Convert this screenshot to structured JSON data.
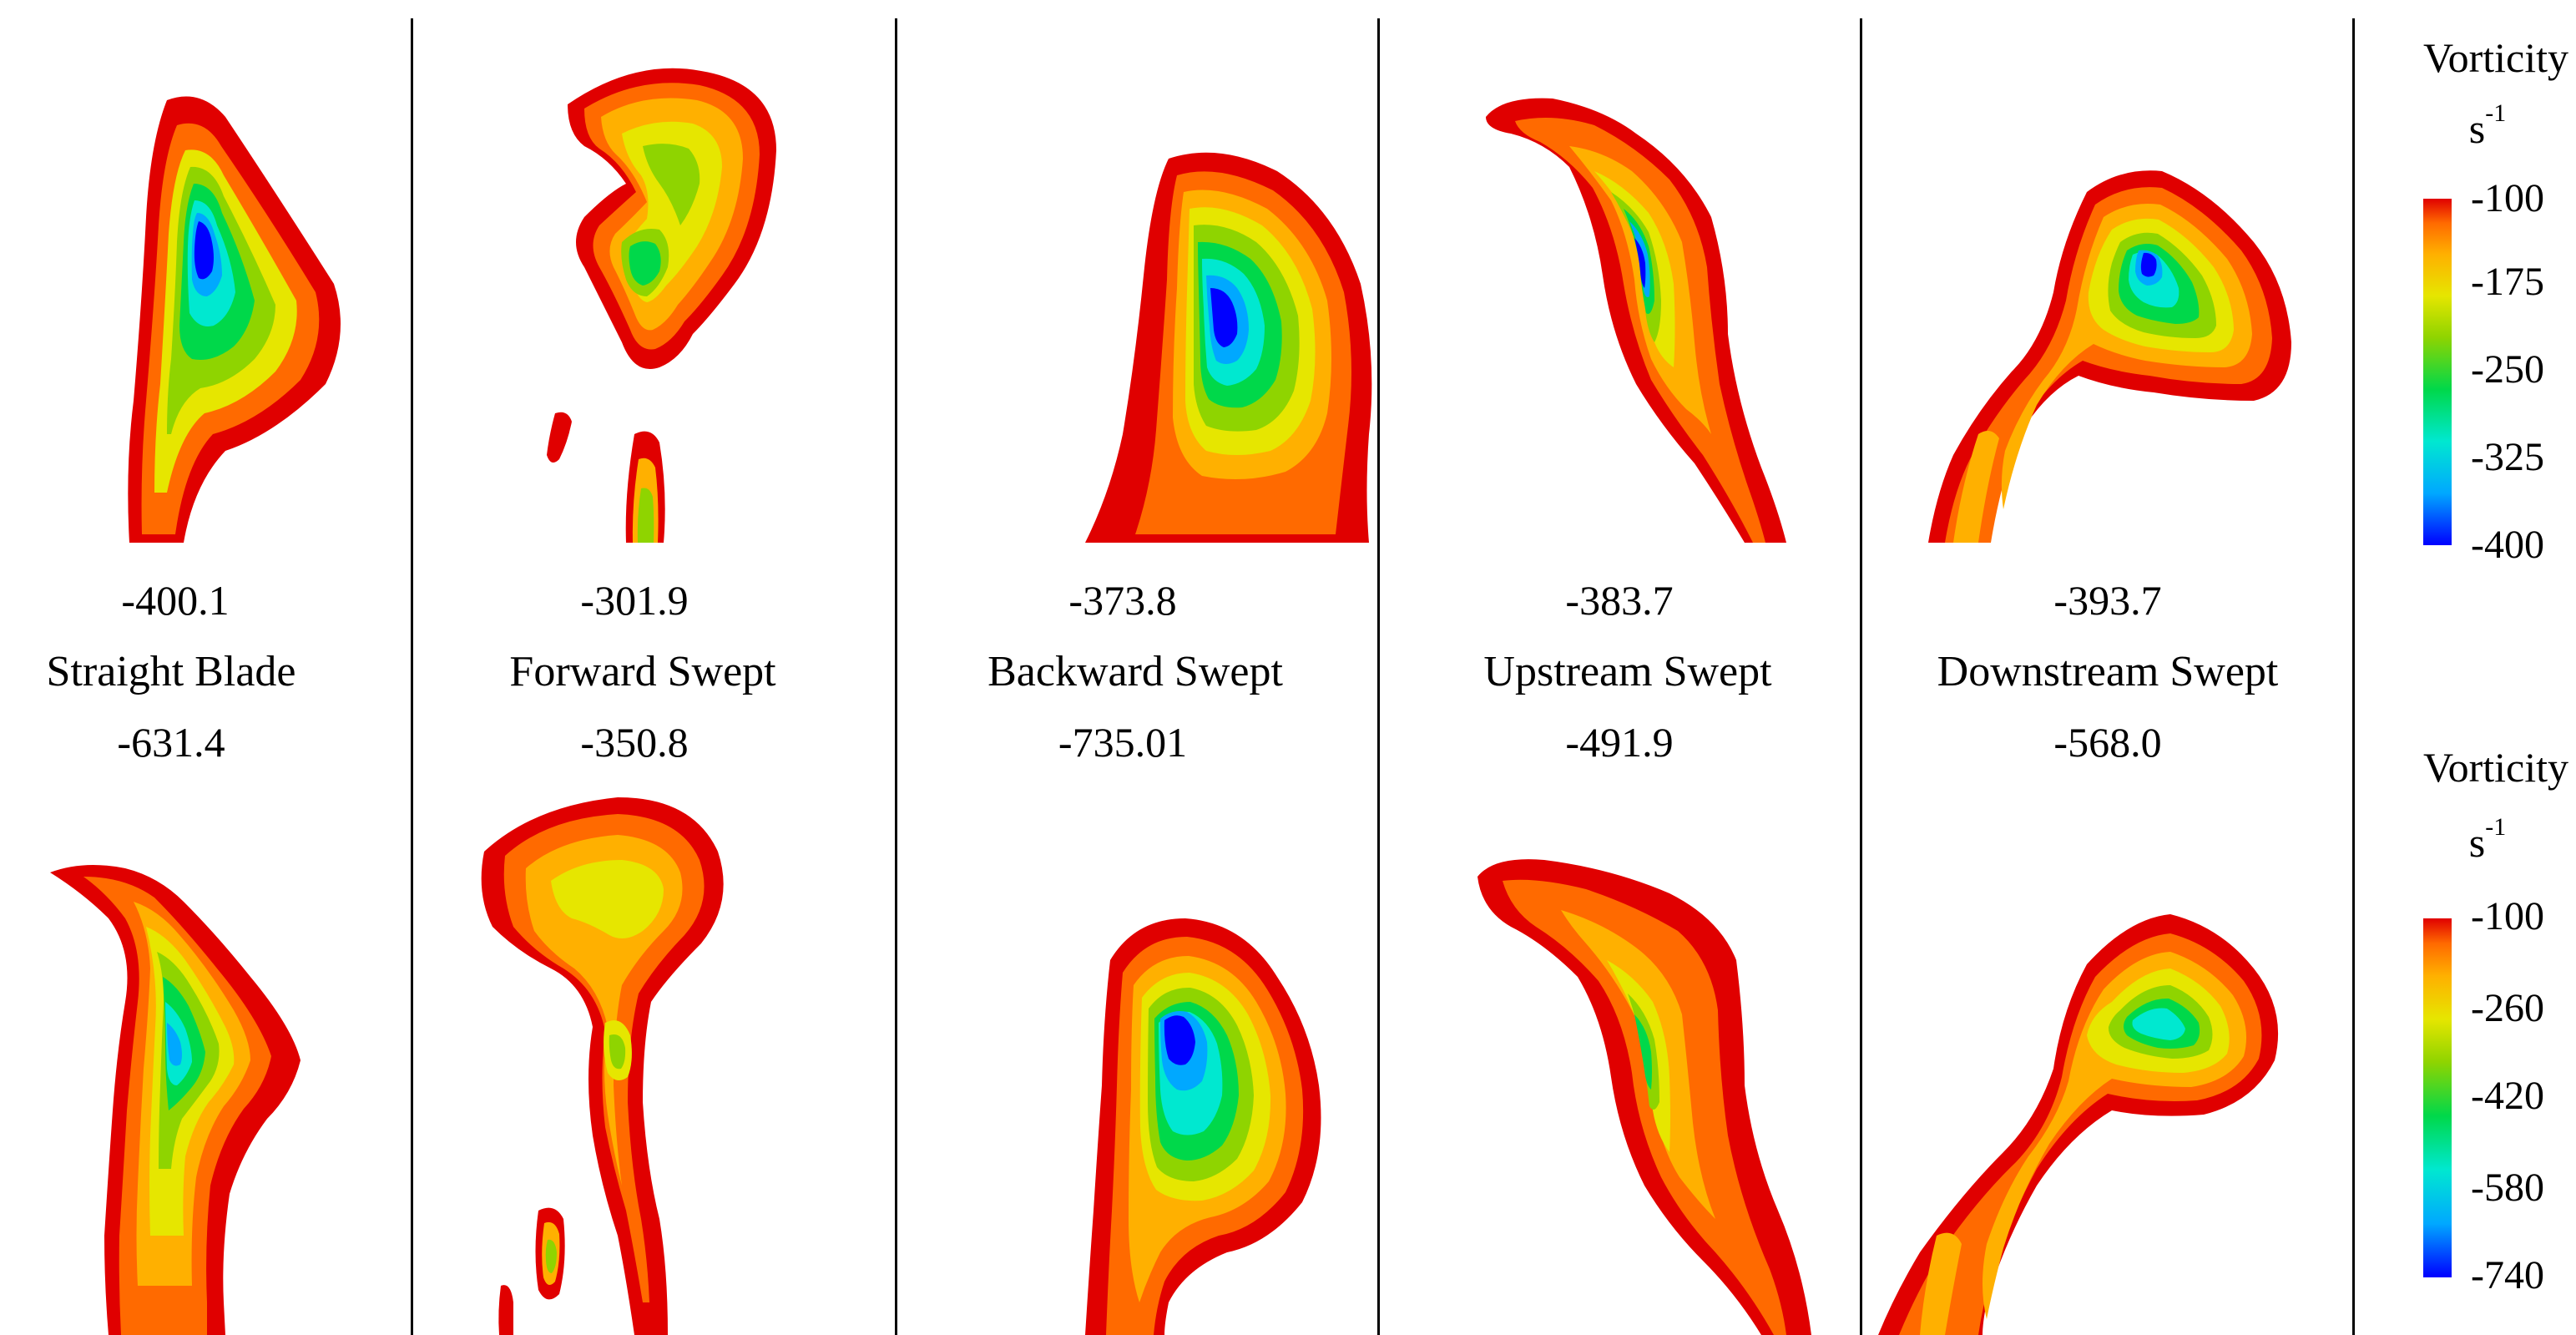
{
  "panels": [
    {
      "label": "Straight Blade",
      "top_value": "-400.1",
      "bottom_value": "-631.4"
    },
    {
      "label": "Forward Swept",
      "top_value": "-301.9",
      "bottom_value": "-350.8"
    },
    {
      "label": "Backward Swept",
      "top_value": "-373.8",
      "bottom_value": "-735.01"
    },
    {
      "label": "Upstream Swept",
      "top_value": "-383.7",
      "bottom_value": "-491.9"
    },
    {
      "label": "Downstream Swept",
      "top_value": "-393.7",
      "bottom_value": "-568.0"
    }
  ],
  "legends": [
    {
      "title": "Vorticity",
      "unit": "s",
      "unit_exp": "-1",
      "ticks": [
        "-100",
        "-175",
        "-250",
        "-325",
        "-400"
      ]
    },
    {
      "title": "Vorticity",
      "unit": "s",
      "unit_exp": "-1",
      "ticks": [
        "-100",
        "-260",
        "-420",
        "-580",
        "-740"
      ]
    }
  ],
  "colorscale": [
    "#0000ff",
    "#00a8ff",
    "#00e8d0",
    "#00d84a",
    "#8fd400",
    "#e6e600",
    "#ffb000",
    "#ff6a00",
    "#e00000"
  ]
}
